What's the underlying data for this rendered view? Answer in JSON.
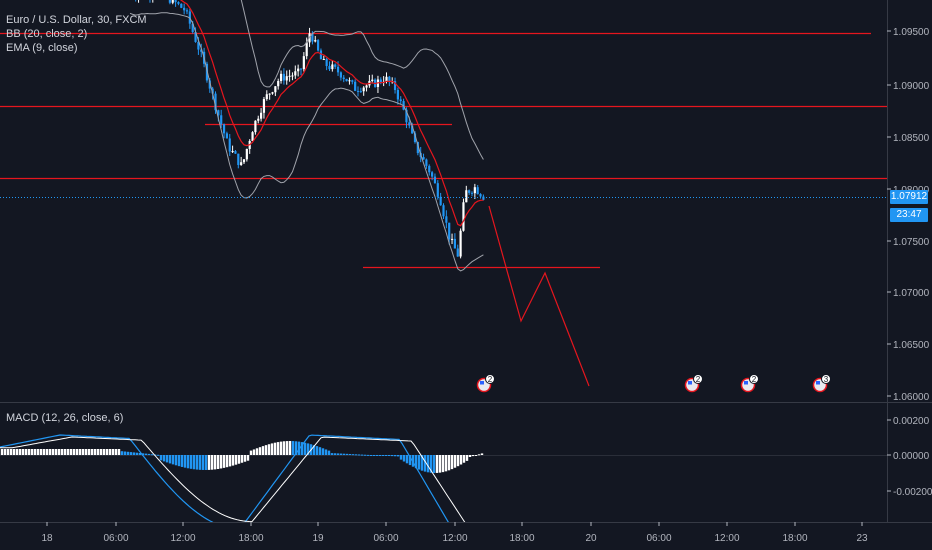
{
  "legend": {
    "title": "Euro / U.S. Dollar, 30, FXCM",
    "bb": "BB (20, close, 2)",
    "ema": "EMA (9, close)",
    "macd": "MACD (12, 26, close, 6)"
  },
  "price_axis": {
    "ticks": [
      "1.09500",
      "1.09000",
      "1.08500",
      "1.08000",
      "1.07500",
      "1.07000",
      "1.06500",
      "1.06000"
    ]
  },
  "macd_axis": {
    "ticks": [
      "0.00200",
      "0.00000",
      "-0.00200"
    ]
  },
  "time_axis": {
    "ticks": [
      "18",
      "06:00",
      "12:00",
      "18:00",
      "19",
      "06:00",
      "12:00",
      "18:00",
      "20",
      "06:00",
      "12:00",
      "18:00",
      "23"
    ]
  },
  "current_price": {
    "value": "1.07912",
    "countdown": "23:47"
  },
  "events": [
    {
      "count": "2"
    },
    {
      "count": "2"
    },
    {
      "count": "2"
    },
    {
      "count": "3"
    }
  ],
  "colors": {
    "background": "#131722",
    "up_candle": "#ffffff",
    "down_candle": "#2196f3",
    "resistance_line": "#e5161e",
    "ema": "#e5161e",
    "bb": "#a0a3ab",
    "macd_line": "#2196f3",
    "signal_line": "#ffffff",
    "projection": "#e5161e"
  }
}
